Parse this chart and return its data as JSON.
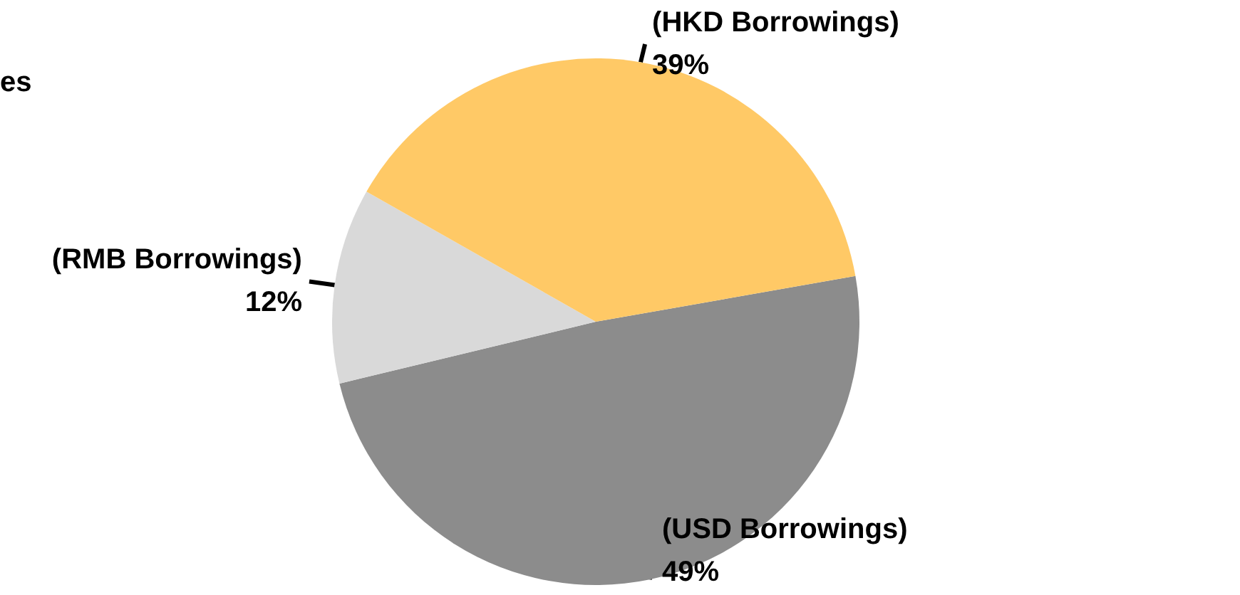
{
  "chart_data": {
    "type": "pie",
    "categories": [
      "(USD Borrowings)",
      "(RMB Borrowings)",
      "(HKD Borrowings)"
    ],
    "values": [
      49,
      12,
      39
    ],
    "value_labels": [
      "49%",
      "12%",
      "39%"
    ],
    "colors": [
      "#8c8c8c",
      "#d9d9d9",
      "#ffc966"
    ],
    "annotations": [
      "es"
    ]
  }
}
